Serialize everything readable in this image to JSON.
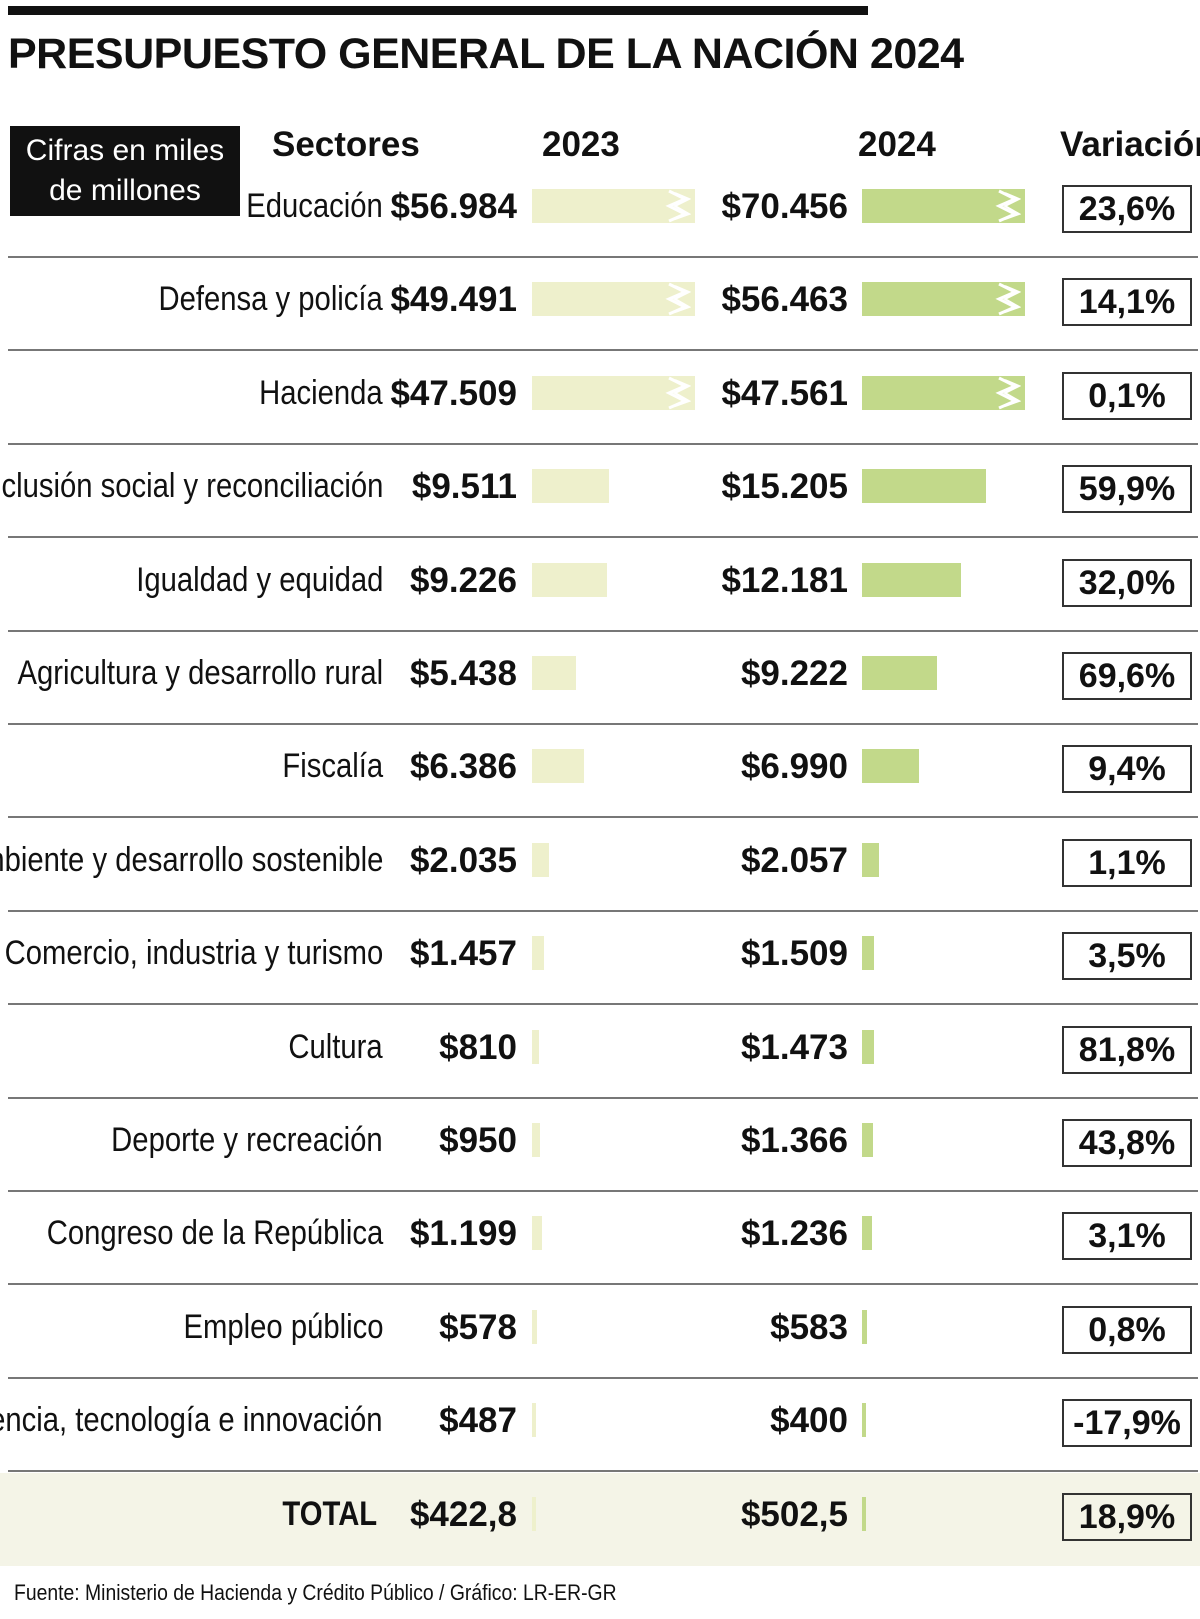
{
  "chart_data": {
    "type": "table",
    "title": "PRESUPUESTO GENERAL DE LA NACIÓN 2024",
    "units": "Cifras en miles de millones",
    "columns": [
      "Sectores",
      "2023",
      "2024",
      "Variación"
    ],
    "rows": [
      {
        "sector": "Educación",
        "v2023": "$56.984",
        "v2024": "$70.456",
        "variacion": "23,6%",
        "n2023": 56984,
        "n2024": 70456,
        "broken": true
      },
      {
        "sector": "Defensa y policía",
        "v2023": "$49.491",
        "v2024": "$56.463",
        "variacion": "14,1%",
        "n2023": 49491,
        "n2024": 56463,
        "broken": true
      },
      {
        "sector": "Hacienda",
        "v2023": "$47.509",
        "v2024": "$47.561",
        "variacion": "0,1%",
        "n2023": 47509,
        "n2024": 47561,
        "broken": true
      },
      {
        "sector": "Inclusión social y reconciliación",
        "v2023": "$9.511",
        "v2024": "$15.205",
        "variacion": "59,9%",
        "n2023": 9511,
        "n2024": 15205,
        "broken": false
      },
      {
        "sector": "Igualdad y equidad",
        "v2023": "$9.226",
        "v2024": "$12.181",
        "variacion": "32,0%",
        "n2023": 9226,
        "n2024": 12181,
        "broken": false
      },
      {
        "sector": "Agricultura y desarrollo rural",
        "v2023": "$5.438",
        "v2024": "$9.222",
        "variacion": "69,6%",
        "n2023": 5438,
        "n2024": 9222,
        "broken": false
      },
      {
        "sector": "Fiscalía",
        "v2023": "$6.386",
        "v2024": "$6.990",
        "variacion": "9,4%",
        "n2023": 6386,
        "n2024": 6990,
        "broken": false
      },
      {
        "sector": "Ambiente y desarrollo sostenible",
        "v2023": "$2.035",
        "v2024": "$2.057",
        "variacion": "1,1%",
        "n2023": 2035,
        "n2024": 2057,
        "broken": false
      },
      {
        "sector": "Comercio, industria y turismo",
        "v2023": "$1.457",
        "v2024": "$1.509",
        "variacion": "3,5%",
        "n2023": 1457,
        "n2024": 1509,
        "broken": false
      },
      {
        "sector": "Cultura",
        "v2023": "$810",
        "v2024": "$1.473",
        "variacion": "81,8%",
        "n2023": 810,
        "n2024": 1473,
        "broken": false
      },
      {
        "sector": "Deporte y recreación",
        "v2023": "$950",
        "v2024": "$1.366",
        "variacion": "43,8%",
        "n2023": 950,
        "n2024": 1366,
        "broken": false
      },
      {
        "sector": "Congreso de la República",
        "v2023": "$1.199",
        "v2024": "$1.236",
        "variacion": "3,1%",
        "n2023": 1199,
        "n2024": 1236,
        "broken": false
      },
      {
        "sector": "Empleo público",
        "v2023": "$578",
        "v2024": "$583",
        "variacion": "0,8%",
        "n2023": 578,
        "n2024": 583,
        "broken": false
      },
      {
        "sector": "Ciencia, tecnología e innovación",
        "v2023": "$487",
        "v2024": "$400",
        "variacion": "-17,9%",
        "n2023": 487,
        "n2024": 400,
        "broken": false
      }
    ],
    "total": {
      "sector": "TOTAL",
      "v2023": "$422,8",
      "v2024": "$502,5",
      "variacion": "18,9%"
    },
    "source": "Fuente: Ministerio de Hacienda y Crédito Público / Gráfico: LR-ER-GR",
    "colors": {
      "bar2023": "#eef0cc",
      "bar2024": "#c2d98a"
    }
  }
}
